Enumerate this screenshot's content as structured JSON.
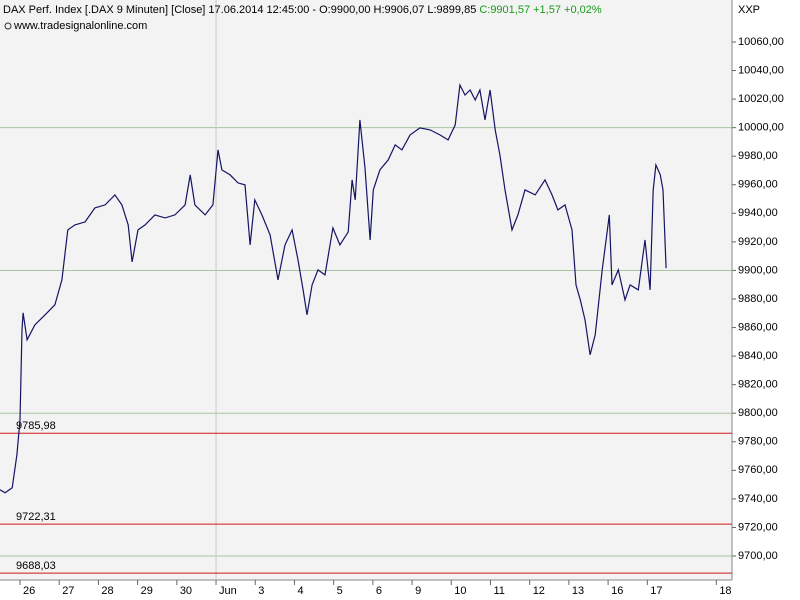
{
  "chart_data": {
    "type": "line",
    "title": "DAX Perf. Index [.DAX  9 Minuten] [Close] 17.06.2014 12:45:00 - O:9900,00 H:9906,07 L:9899,85",
    "title_change": "C:9901,57 +1,57 +0,02%",
    "subtitle": "www.tradesignalonline.com",
    "corner_label": "XXP",
    "color": "#141464",
    "change_color": "#1a9a1a",
    "level_color": "#d01818",
    "grid": true,
    "xlim": [
      -0.51,
      18.16
    ],
    "ylim": [
      9683.2,
      10089.4
    ],
    "xticks": [
      {
        "value": 0,
        "label": "26"
      },
      {
        "value": 1,
        "label": "27"
      },
      {
        "value": 2,
        "label": "28"
      },
      {
        "value": 3,
        "label": "29"
      },
      {
        "value": 4,
        "label": "30"
      },
      {
        "value": 5,
        "label": "Jun"
      },
      {
        "value": 6,
        "label": "3"
      },
      {
        "value": 7,
        "label": "4"
      },
      {
        "value": 8,
        "label": "5"
      },
      {
        "value": 9,
        "label": "6"
      },
      {
        "value": 10,
        "label": "9"
      },
      {
        "value": 11,
        "label": "10"
      },
      {
        "value": 12,
        "label": "11"
      },
      {
        "value": 13,
        "label": "12"
      },
      {
        "value": 14,
        "label": "13"
      },
      {
        "value": 15,
        "label": "16"
      },
      {
        "value": 16,
        "label": "17"
      },
      {
        "value": 17.76,
        "label": "18"
      }
    ],
    "yticks": [
      {
        "value": 9700,
        "label": "9700,00"
      },
      {
        "value": 9720,
        "label": "9720,00"
      },
      {
        "value": 9740,
        "label": "9740,00"
      },
      {
        "value": 9760,
        "label": "9760,00"
      },
      {
        "value": 9780,
        "label": "9780,00"
      },
      {
        "value": 9800,
        "label": "9800,00"
      },
      {
        "value": 9820,
        "label": "9820,00"
      },
      {
        "value": 9840,
        "label": "9840,00"
      },
      {
        "value": 9860,
        "label": "9860,00"
      },
      {
        "value": 9880,
        "label": "9880,00"
      },
      {
        "value": 9900,
        "label": "9900,00"
      },
      {
        "value": 9920,
        "label": "9920,00"
      },
      {
        "value": 9940,
        "label": "9940,00"
      },
      {
        "value": 9960,
        "label": "9960,00"
      },
      {
        "value": 9980,
        "label": "9980,00"
      },
      {
        "value": 10000,
        "label": "10000,00"
      },
      {
        "value": 10020,
        "label": "10020,00"
      },
      {
        "value": 10040,
        "label": "10040,00"
      },
      {
        "value": 10060,
        "label": "10060,00"
      }
    ],
    "levels": [
      {
        "value": 9785.98,
        "label": "9785,98"
      },
      {
        "value": 9722.31,
        "label": "9722,31"
      },
      {
        "value": 9688.03,
        "label": "9688,03"
      }
    ],
    "x": [
      -0.51,
      -0.38,
      -0.2,
      -0.08,
      0,
      0.05,
      0.08,
      0.18,
      0.38,
      0.64,
      0.89,
      1.07,
      1.22,
      1.4,
      1.66,
      1.91,
      2.17,
      2.42,
      2.6,
      2.76,
      2.86,
      3.01,
      3.19,
      3.44,
      3.7,
      3.95,
      4.21,
      4.34,
      4.46,
      4.72,
      4.92,
      5.05,
      5.15,
      5.36,
      5.56,
      5.74,
      5.87,
      5.99,
      6.17,
      6.38,
      6.58,
      6.76,
      6.94,
      7.09,
      7.22,
      7.32,
      7.45,
      7.6,
      7.78,
      7.98,
      8.16,
      8.37,
      8.47,
      8.55,
      8.67,
      8.8,
      8.93,
      9.01,
      9.18,
      9.39,
      9.57,
      9.74,
      9.95,
      10.2,
      10.46,
      10.71,
      10.92,
      11.1,
      11.22,
      11.35,
      11.48,
      11.61,
      11.73,
      11.86,
      11.99,
      12.12,
      12.24,
      12.37,
      12.55,
      12.7,
      12.88,
      13.14,
      13.39,
      13.57,
      13.72,
      13.9,
      14.08,
      14.18,
      14.29,
      14.41,
      14.54,
      14.67,
      14.74,
      14.85,
      14.95,
      15.03,
      15.1,
      15.26,
      15.43,
      15.56,
      15.77,
      15.94,
      16.07,
      16.15,
      16.22,
      16.33,
      16.4,
      16.48
    ],
    "values": [
      9746.4,
      9744.3,
      9747.8,
      9770.9,
      9795.4,
      9858.4,
      9870.3,
      9851.4,
      9861.9,
      9868.9,
      9875.9,
      9893.4,
      9928.4,
      9931.9,
      9934,
      9943.8,
      9945.9,
      9952.9,
      9945.9,
      9931.9,
      9906,
      9928.4,
      9931.9,
      9938.9,
      9936.8,
      9938.9,
      9945.9,
      9966.9,
      9945.9,
      9938.9,
      9945.9,
      9984.4,
      9970.4,
      9966.9,
      9961.3,
      9959.9,
      9917.9,
      9949.4,
      9938.9,
      9924.9,
      9893.4,
      9917.9,
      9928.4,
      9907.4,
      9886.4,
      9868.9,
      9889.9,
      9900.4,
      9896.9,
      9929.8,
      9917.9,
      9927,
      9963.4,
      9949.4,
      10005.4,
      9971.8,
      9921.4,
      9956.4,
      9970.4,
      9977.4,
      9987.9,
      9984.4,
      9994.9,
      9999.8,
      9998.4,
      9994.9,
      9991.4,
      10001.9,
      10029.9,
      10022.9,
      10026.4,
      10019.4,
      10026.4,
      10005.4,
      10026.4,
      9998.4,
      9980.9,
      9956.4,
      9928.4,
      9938.9,
      9956.4,
      9952.9,
      9963.4,
      9952.9,
      9942.4,
      9945.9,
      9928.4,
      9889.9,
      9879.4,
      9865.4,
      9840.9,
      9854.9,
      9872.4,
      9900.4,
      9921.4,
      9938.9,
      9889.9,
      9900.4,
      9879.4,
      9889.9,
      9886.4,
      9921.4,
      9886.4,
      9956.4,
      9973.9,
      9966.9,
      9956.4,
      9901.57
    ]
  }
}
